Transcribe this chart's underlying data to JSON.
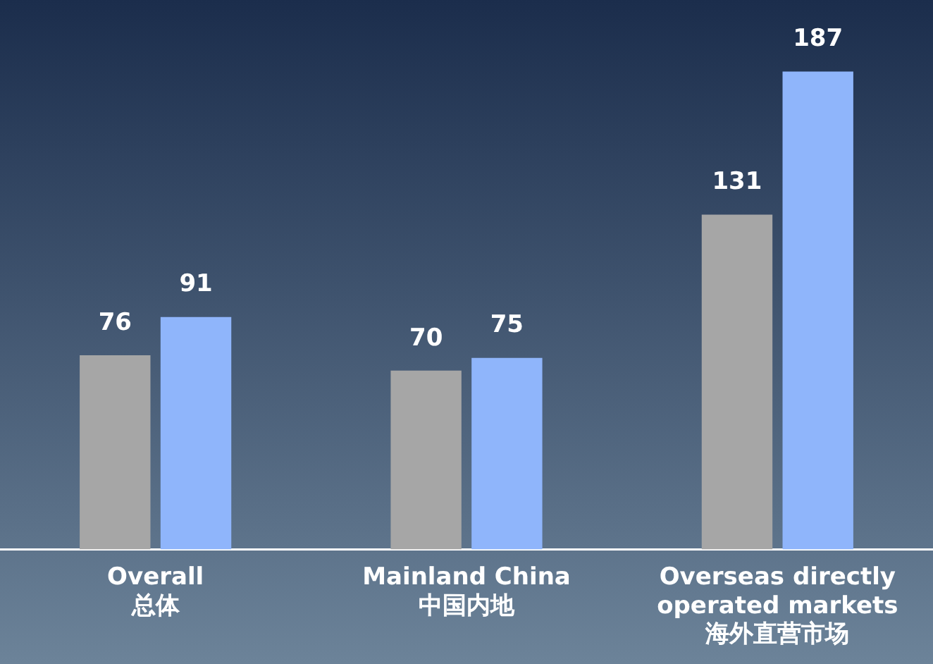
{
  "chart_data": {
    "type": "bar",
    "categories": [
      "Overall\n总体",
      "Mainland China\n中国内地",
      "Overseas directly\noperated markets\n海外直营市场"
    ],
    "series": [
      {
        "color": "#a6a6a6",
        "values": [
          76,
          70,
          131
        ]
      },
      {
        "color": "#8fb5fb",
        "values": [
          91,
          75,
          187
        ]
      }
    ],
    "ylim": [
      0,
      215
    ],
    "tick_labels": "x",
    "grid": false,
    "legend": false,
    "data_labels": true
  }
}
